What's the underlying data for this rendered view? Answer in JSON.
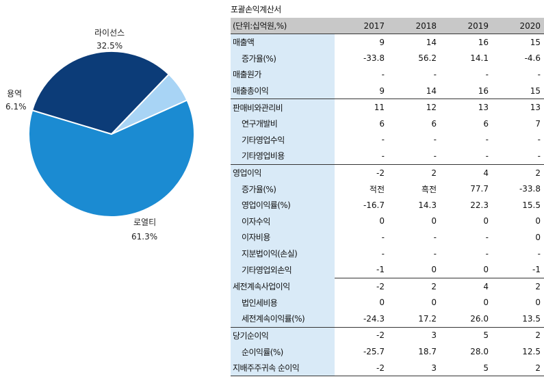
{
  "chart_data": {
    "type": "pie",
    "slices": [
      {
        "label": "로열티",
        "value": 61.3,
        "pct_label": "61.3%",
        "color": "#1b8bd2"
      },
      {
        "label": "라이선스",
        "value": 32.5,
        "pct_label": "32.5%",
        "color": "#0c3c78"
      },
      {
        "label": "용역",
        "value": 6.1,
        "pct_label": "6.1%",
        "color": "#a8d4f5"
      }
    ],
    "start_angle_deg": 65.8,
    "direction": "clockwise",
    "legend": "labels-outside"
  },
  "table": {
    "title": "포괄손익계산서",
    "unit_label": "(단위:십억원,%)",
    "years": [
      "2017",
      "2018",
      "2019",
      "2020"
    ],
    "rows": [
      {
        "label": "매출액",
        "sub": false,
        "values": [
          "9",
          "14",
          "16",
          "15"
        ],
        "sep": "full"
      },
      {
        "label": "증가율(%)",
        "sub": true,
        "values": [
          "-33.8",
          "56.2",
          "14.1",
          "-4.6"
        ],
        "sep": ""
      },
      {
        "label": "매출원가",
        "sub": false,
        "values": [
          "-",
          "-",
          "-",
          "-"
        ],
        "sep": ""
      },
      {
        "label": "매출총이익",
        "sub": false,
        "values": [
          "9",
          "14",
          "16",
          "15"
        ],
        "sep": ""
      },
      {
        "label": "판매비와관리비",
        "sub": false,
        "values": [
          "11",
          "12",
          "13",
          "13"
        ],
        "sep": "full"
      },
      {
        "label": "연구개발비",
        "sub": true,
        "values": [
          "6",
          "6",
          "6",
          "7"
        ],
        "sep": ""
      },
      {
        "label": "기타영업수익",
        "sub": true,
        "values": [
          "-",
          "-",
          "-",
          "-"
        ],
        "sep": ""
      },
      {
        "label": "기타영업비용",
        "sub": true,
        "values": [
          "-",
          "-",
          "-",
          "-"
        ],
        "sep": ""
      },
      {
        "label": "영업이익",
        "sub": false,
        "values": [
          "-2",
          "2",
          "4",
          "2"
        ],
        "sep": "full"
      },
      {
        "label": "증가율(%)",
        "sub": true,
        "values": [
          "적전",
          "흑전",
          "77.7",
          "-33.8"
        ],
        "sep": ""
      },
      {
        "label": "영업이익률(%)",
        "sub": true,
        "values": [
          "-16.7",
          "14.3",
          "22.3",
          "15.5"
        ],
        "sep": ""
      },
      {
        "label": "이자수익",
        "sub": true,
        "values": [
          "0",
          "0",
          "0",
          "0"
        ],
        "sep": ""
      },
      {
        "label": "이자비용",
        "sub": true,
        "values": [
          "-",
          "-",
          "-",
          "0"
        ],
        "sep": ""
      },
      {
        "label": "지분법이익(손실)",
        "sub": true,
        "values": [
          "-",
          "-",
          "-",
          "-"
        ],
        "sep": ""
      },
      {
        "label": "기타영업외손익",
        "sub": true,
        "values": [
          "-1",
          "0",
          "0",
          "-1"
        ],
        "sep": ""
      },
      {
        "label": "세전계속사업이익",
        "sub": false,
        "values": [
          "-2",
          "2",
          "4",
          "2"
        ],
        "sep": "partial"
      },
      {
        "label": "법인세비용",
        "sub": true,
        "values": [
          "0",
          "0",
          "0",
          "0"
        ],
        "sep": ""
      },
      {
        "label": "세전계속이익률(%)",
        "sub": true,
        "values": [
          "-24.3",
          "17.2",
          "26.0",
          "13.5"
        ],
        "sep": ""
      },
      {
        "label": "당기순이익",
        "sub": false,
        "values": [
          "-2",
          "3",
          "5",
          "2"
        ],
        "sep": "full"
      },
      {
        "label": "순이익률(%)",
        "sub": true,
        "values": [
          "-25.7",
          "18.7",
          "28.0",
          "12.5"
        ],
        "sep": ""
      },
      {
        "label": "지배주주귀속 순이익",
        "sub": false,
        "values": [
          "-2",
          "3",
          "5",
          "2"
        ],
        "sep": "",
        "last": true
      }
    ]
  }
}
